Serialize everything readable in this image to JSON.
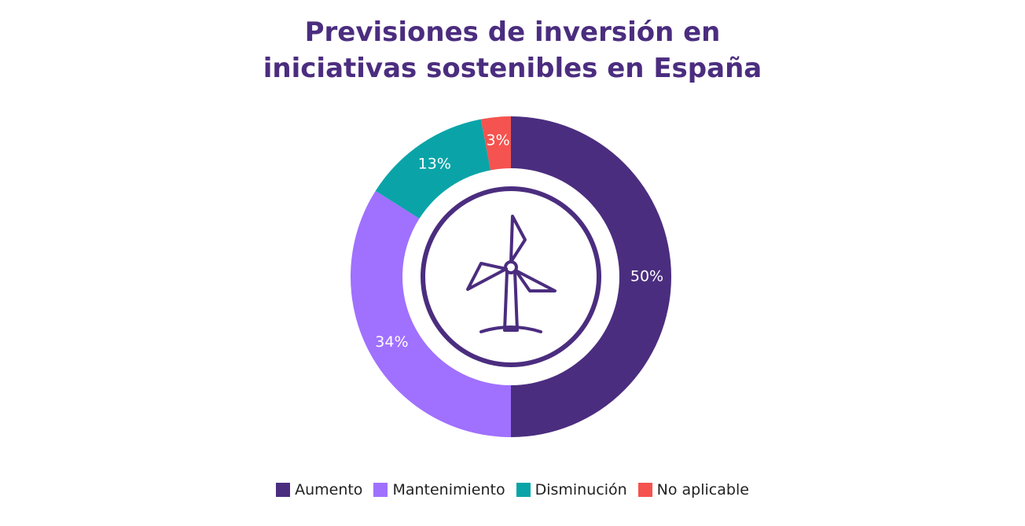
{
  "chart_data": {
    "type": "donut",
    "title": [
      "Previsiones de inversión en",
      "iniciativas sostenibles en España"
    ],
    "categories": [
      "Aumento",
      "Mantenimiento",
      "Disminución",
      "No aplicable"
    ],
    "values": [
      50,
      34,
      13,
      3
    ],
    "value_labels": [
      "50%",
      "34%",
      "13%",
      "3%"
    ],
    "colors": [
      "#4b2d7f",
      "#a070ff",
      "#0aa4a8",
      "#f5534f"
    ],
    "legend": "bottom"
  }
}
